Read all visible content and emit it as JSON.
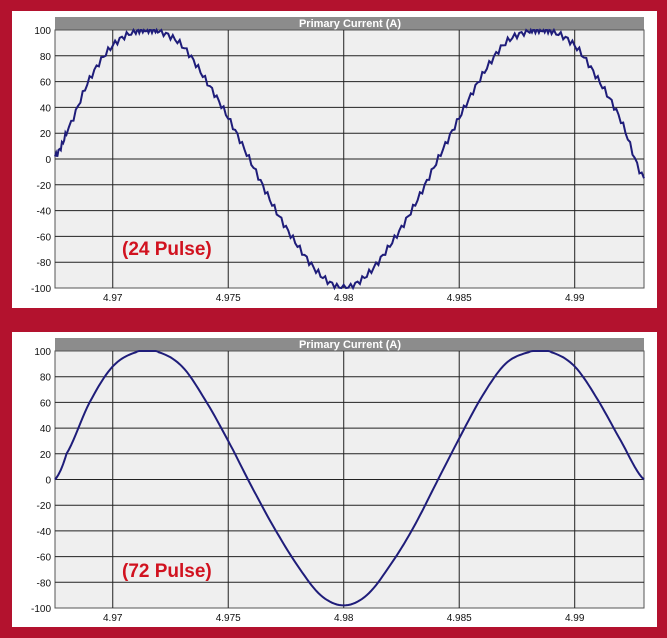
{
  "chart_data": [
    {
      "type": "line",
      "title": "Primary Current (A)",
      "annotation": "(24 Pulse)",
      "xlim": [
        4.9675,
        4.993
      ],
      "ylim": [
        -100,
        100
      ],
      "x_ticks": [
        4.97,
        4.975,
        4.98,
        4.985,
        4.99
      ],
      "x_tick_labels": [
        "4.97",
        "4.975",
        "4.98",
        "4.985",
        "4.99"
      ],
      "y_ticks": [
        100,
        80,
        60,
        40,
        20,
        0,
        -20,
        -40,
        -60,
        -80,
        -100
      ],
      "y_tick_labels": [
        "100",
        "80",
        "60",
        "40",
        "20",
        "0",
        "-20",
        "-40",
        "-60",
        "-80",
        "-100"
      ],
      "grid": true,
      "series": [
        {
          "color": "#1f1d7a",
          "ripple": 2.5,
          "x": [
            4.9675,
            4.968,
            4.969,
            4.97,
            4.971,
            4.9715,
            4.972,
            4.973,
            4.974,
            4.975,
            4.976,
            4.977,
            4.978,
            4.979,
            4.98,
            4.981,
            4.982,
            4.983,
            4.984,
            4.985,
            4.986,
            4.987,
            4.988,
            4.9885,
            4.989,
            4.99,
            4.991,
            4.992,
            4.993
          ],
          "y": [
            2,
            21,
            62,
            88,
            99,
            100,
            99,
            88,
            62,
            32,
            -3,
            -38,
            -67,
            -90,
            -100,
            -90,
            -67,
            -38,
            -3,
            32,
            65,
            90,
            99,
            100,
            99,
            88,
            62,
            30,
            -15
          ]
        }
      ]
    },
    {
      "type": "line",
      "title": "Primary Current (A)",
      "annotation": "(72 Pulse)",
      "xlim": [
        4.9675,
        4.993
      ],
      "ylim": [
        -100,
        100
      ],
      "x_ticks": [
        4.97,
        4.975,
        4.98,
        4.985,
        4.99
      ],
      "x_tick_labels": [
        "4.97",
        "4.975",
        "4.98",
        "4.985",
        "4.99"
      ],
      "y_ticks": [
        100,
        80,
        60,
        40,
        20,
        0,
        -20,
        -40,
        -60,
        -80,
        -100
      ],
      "y_tick_labels": [
        "100",
        "80",
        "60",
        "40",
        "20",
        "0",
        "-20",
        "-40",
        "-60",
        "-80",
        "-100"
      ],
      "grid": true,
      "series": [
        {
          "color": "#1f1d7a",
          "ripple": 0,
          "x": [
            4.9675,
            4.968,
            4.969,
            4.97,
            4.971,
            4.9715,
            4.972,
            4.973,
            4.974,
            4.975,
            4.976,
            4.977,
            4.978,
            4.979,
            4.98,
            4.981,
            4.982,
            4.983,
            4.984,
            4.985,
            4.986,
            4.987,
            4.988,
            4.9885,
            4.989,
            4.99,
            4.991,
            4.992,
            4.993
          ],
          "y": [
            0,
            20,
            60,
            88,
            99,
            100,
            99,
            88,
            62,
            30,
            -5,
            -38,
            -67,
            -90,
            -98,
            -90,
            -67,
            -38,
            -3,
            32,
            65,
            90,
            99,
            100,
            99,
            88,
            62,
            30,
            0
          ]
        }
      ]
    }
  ]
}
